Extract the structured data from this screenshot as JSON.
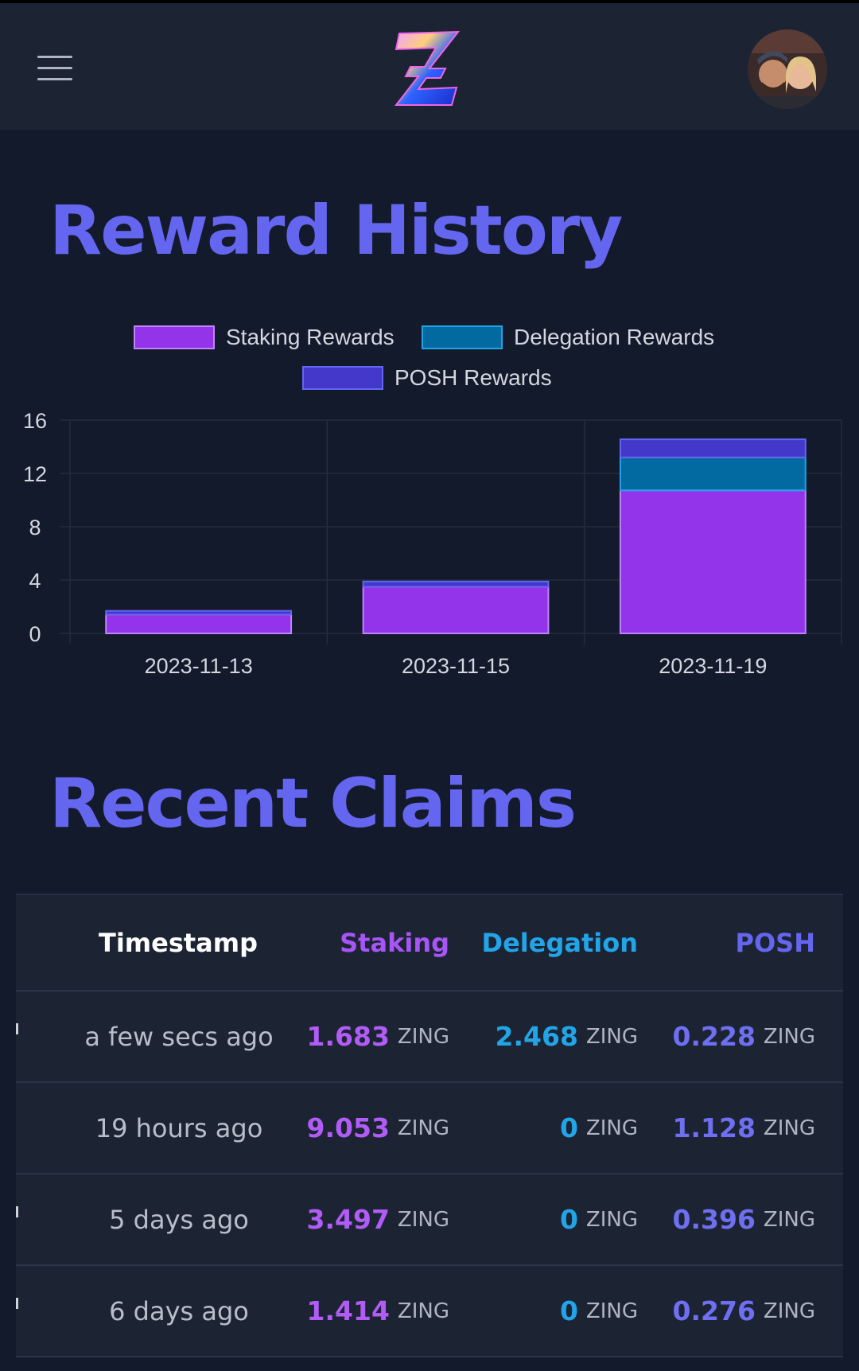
{
  "header": {
    "menu_icon": "hamburger-icon",
    "logo_icon": "zing-logo",
    "avatar_icon": "user-avatar"
  },
  "reward_history": {
    "title": "Reward History"
  },
  "chart_data": {
    "type": "bar",
    "stacked": true,
    "categories": [
      "2023-11-13",
      "2023-11-15",
      "2023-11-19"
    ],
    "series": [
      {
        "name": "Staking Rewards",
        "values": [
          1.414,
          3.497,
          10.736
        ],
        "color": "#9333ea"
      },
      {
        "name": "Delegation Rewards",
        "values": [
          0,
          0,
          2.468
        ],
        "color": "#0369a1"
      },
      {
        "name": "POSH Rewards",
        "values": [
          0.276,
          0.396,
          1.356
        ],
        "color": "#4338ca"
      }
    ],
    "yticks": [
      0,
      4,
      8,
      12,
      16
    ],
    "ylim": [
      0,
      16
    ],
    "legend": "top",
    "grid": true
  },
  "recent_claims": {
    "title": "Recent Claims",
    "columns": {
      "timestamp": "Timestamp",
      "staking": "Staking",
      "delegation": "Delegation",
      "posh": "POSH"
    },
    "rows": [
      {
        "time": "a few secs ago",
        "staking": "1.683",
        "delegation": "2.468",
        "posh": "0.228",
        "unit": "ZING"
      },
      {
        "time": "19 hours ago",
        "staking": "9.053",
        "delegation": "0",
        "posh": "1.128",
        "unit": "ZING"
      },
      {
        "time": "5 days ago",
        "staking": "3.497",
        "delegation": "0",
        "posh": "0.396",
        "unit": "ZING"
      },
      {
        "time": "6 days ago",
        "staking": "1.414",
        "delegation": "0",
        "posh": "0.276",
        "unit": "ZING"
      }
    ]
  }
}
